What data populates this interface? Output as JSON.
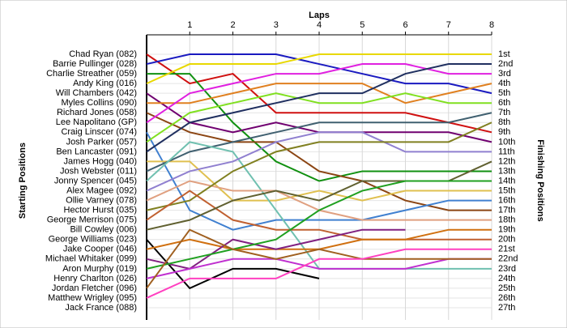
{
  "chart_data": {
    "type": "line",
    "title": "Laps",
    "y_label": "Starting Positions",
    "y2_label": "Finishing Positions",
    "x": [
      0,
      1,
      2,
      3,
      4,
      5,
      6,
      7,
      8
    ],
    "xlim": [
      0,
      8
    ],
    "xticks": [
      1,
      2,
      3,
      4,
      5,
      6,
      7,
      8
    ],
    "ylim": [
      1,
      27
    ],
    "yticks": [
      1,
      2,
      3,
      4,
      5,
      6,
      7,
      8,
      9,
      10,
      11,
      12,
      13,
      14,
      15,
      16,
      17,
      18,
      19,
      20,
      21,
      22,
      23,
      24,
      25,
      26,
      27
    ],
    "finish_labels": [
      "1st",
      "2nd",
      "3rd",
      "4th",
      "5th",
      "6th",
      "7th",
      "8th",
      "9th",
      "10th",
      "11th",
      "12th",
      "13th",
      "14th",
      "15th",
      "16th",
      "17th",
      "18th",
      "19th",
      "20th",
      "21st",
      "22nd",
      "23rd",
      "24th",
      "25th",
      "26th",
      "27th"
    ],
    "grid": true,
    "series": [
      {
        "name": "Chad Ryan (082)",
        "color": "#d01010",
        "values": [
          1,
          4,
          3,
          7,
          7,
          7,
          7,
          8,
          9
        ]
      },
      {
        "name": "Barrie Pullinger (028)",
        "color": "#1a1ac0",
        "values": [
          2,
          1,
          1,
          1,
          2,
          3,
          4,
          4,
          5
        ]
      },
      {
        "name": "Charlie Streather (059)",
        "color": "#109010",
        "values": [
          3,
          3,
          8,
          12,
          14,
          13,
          13,
          13,
          13
        ]
      },
      {
        "name": "Andy King (016)",
        "color": "#e8d800",
        "values": [
          4,
          2,
          2,
          2,
          1,
          1,
          1,
          1,
          1
        ]
      },
      {
        "name": "Will Chambers (042)",
        "color": "#700070",
        "values": [
          5,
          8,
          9,
          8,
          9,
          9,
          9,
          9,
          10
        ]
      },
      {
        "name": "Myles Collins (090)",
        "color": "#e08020",
        "values": [
          6,
          6,
          5,
          4,
          4,
          4,
          6,
          5,
          4
        ]
      },
      {
        "name": "Richard Jones (058)",
        "color": "#8b4513",
        "values": [
          7,
          9,
          10,
          10,
          13,
          14,
          16,
          17,
          17
        ]
      },
      {
        "name": "Lee Napolitano (GP)",
        "color": "#e020e0",
        "values": [
          8,
          5,
          4,
          3,
          3,
          2,
          2,
          3,
          3
        ]
      },
      {
        "name": "Craig Linscer (074)",
        "color": "#4080d0",
        "values": [
          9,
          17,
          19,
          18,
          18,
          18,
          17,
          16,
          16
        ]
      },
      {
        "name": "Josh Parker (057)",
        "color": "#80e020",
        "values": [
          10,
          7,
          6,
          5,
          6,
          6,
          5,
          6,
          6
        ]
      },
      {
        "name": "Ben Lancaster (091)",
        "color": "#203060",
        "values": [
          11,
          8,
          7,
          6,
          5,
          5,
          3,
          2,
          2
        ]
      },
      {
        "name": "James Hogg (040)",
        "color": "#e0c050",
        "values": [
          12,
          12,
          16,
          16,
          15,
          16,
          15,
          15,
          15
        ]
      },
      {
        "name": "Josh Webster (011)",
        "color": "#406070",
        "values": [
          13,
          11,
          10,
          9,
          8,
          8,
          8,
          8,
          7
        ]
      },
      {
        "name": "Jonny Spencer (045)",
        "color": "#70c0b0",
        "values": [
          14,
          10,
          11,
          17,
          23,
          23,
          23,
          23,
          23
        ]
      },
      {
        "name": "Alex Magee (092)",
        "color": "#9080d0",
        "values": [
          15,
          13,
          12,
          10,
          9,
          9,
          11,
          11,
          11
        ]
      },
      {
        "name": "Ollie Varney (078)",
        "color": "#e0a080",
        "values": [
          16,
          14,
          15,
          15,
          17,
          18,
          18,
          18,
          18
        ]
      },
      {
        "name": "Hector Hurst (035)",
        "color": "#808020",
        "values": [
          17,
          16,
          13,
          11,
          10,
          10,
          10,
          10,
          8
        ]
      },
      {
        "name": "George Merrison (075)",
        "color": "#c06030",
        "values": [
          18,
          15,
          18,
          19,
          19,
          20,
          20,
          20,
          20
        ]
      },
      {
        "name": "Bill Cowley (006)",
        "color": "#606030",
        "values": [
          19,
          18,
          16,
          15,
          16,
          14,
          14,
          14,
          12
        ]
      },
      {
        "name": "George Williams (023)",
        "color": "#000000",
        "values": [
          20,
          25,
          23,
          23,
          24,
          null,
          null,
          null,
          null
        ]
      },
      {
        "name": "Jake Cooper (046)",
        "color": "#d07010",
        "values": [
          21,
          20,
          21,
          21,
          21,
          20,
          20,
          19,
          19
        ]
      },
      {
        "name": "Michael Whitaker (099)",
        "color": "#802080",
        "values": [
          22,
          23,
          20,
          21,
          20,
          19,
          19,
          null,
          null
        ]
      },
      {
        "name": "Aron Murphy (019)",
        "color": "#20a020",
        "values": [
          23,
          22,
          21,
          20,
          17,
          15,
          14,
          14,
          14
        ]
      },
      {
        "name": "Henry Charlton (026)",
        "color": "#c030d0",
        "values": [
          24,
          23,
          22,
          22,
          23,
          23,
          23,
          22,
          22
        ]
      },
      {
        "name": "Jordan Fletcher (096)",
        "color": "#a06020",
        "values": [
          25,
          19,
          21,
          22,
          21,
          22,
          22,
          22,
          22
        ]
      },
      {
        "name": "Matthew Wrigley (095)",
        "color": "#ff40c0",
        "values": [
          26,
          24,
          24,
          24,
          22,
          22,
          21,
          21,
          21
        ]
      },
      {
        "name": "Jack France (088)",
        "color": "#808080",
        "values": [
          null,
          null,
          null,
          null,
          null,
          null,
          null,
          null,
          null
        ]
      }
    ]
  }
}
